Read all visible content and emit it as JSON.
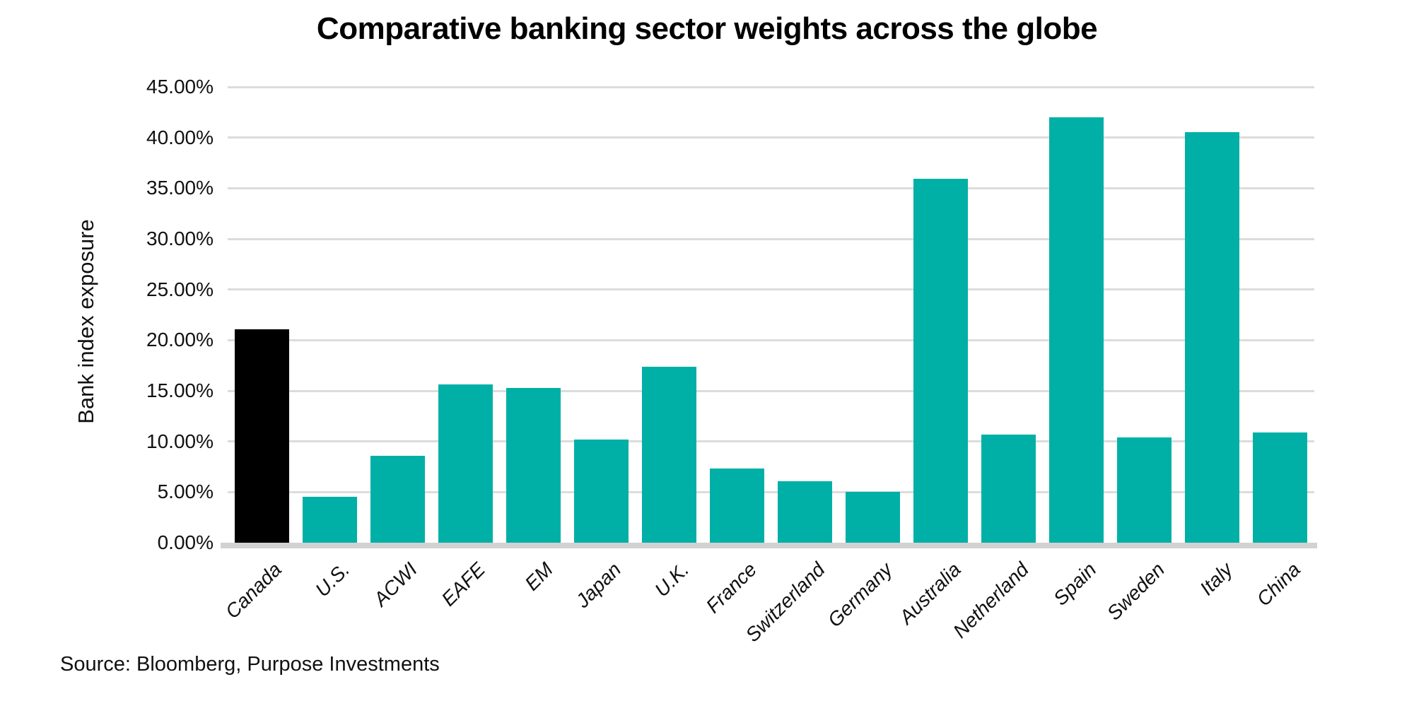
{
  "chart_data": {
    "type": "bar",
    "title": "Comparative banking sector weights across the globe",
    "ylabel": "Bank index exposure",
    "xlabel": "",
    "categories": [
      "Canada",
      "U.S.",
      "ACWI",
      "EAFE",
      "EM",
      "Japan",
      "U.K.",
      "France",
      "Switzerland",
      "Germany",
      "Australia",
      "Netherland",
      "Spain",
      "Sweden",
      "Italy",
      "China"
    ],
    "values": [
      21.1,
      4.5,
      8.6,
      15.6,
      15.3,
      10.2,
      17.4,
      7.3,
      6.1,
      5.0,
      35.9,
      10.7,
      42.0,
      10.4,
      40.5,
      10.9
    ],
    "ylim": [
      0,
      45
    ],
    "ytick_step": 5,
    "ytick_labels": [
      "0.00%",
      "5.00%",
      "10.00%",
      "15.00%",
      "20.00%",
      "25.00%",
      "30.00%",
      "35.00%",
      "40.00%",
      "45.00%"
    ],
    "grid": true,
    "legend": "none",
    "bar_color_default": "#00b0a6",
    "bar_color_highlight": "#000000",
    "highlight_category": "Canada"
  },
  "source_note": "Source: Bloomberg, Purpose Investments",
  "colors": {
    "background": "#ffffff",
    "gridline": "#dcdcdc",
    "baseline": "#d2d2d2",
    "text": "#111111"
  }
}
